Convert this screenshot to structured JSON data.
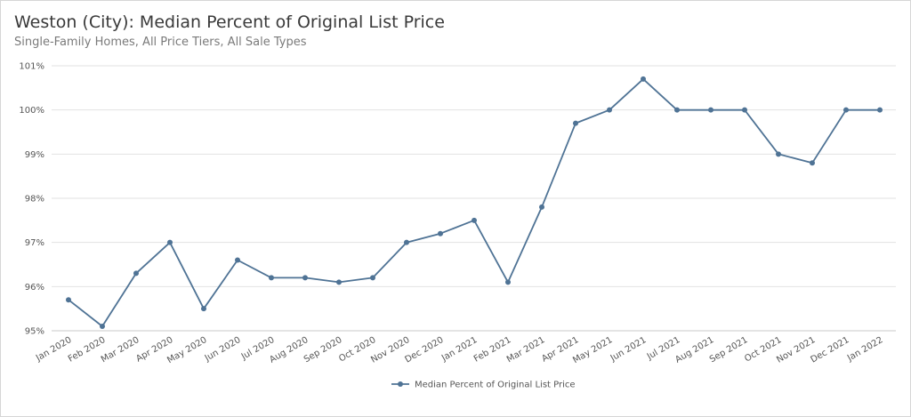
{
  "header": {
    "title": "Weston (City): Median Percent of Original List Price",
    "subtitle": "Single-Family Homes, All Price Tiers, All Sale Types"
  },
  "chart_data": {
    "type": "line",
    "title": "Weston (City): Median Percent of Original List Price",
    "subtitle": "Single-Family Homes, All Price Tiers, All Sale Types",
    "xlabel": "",
    "ylabel": "",
    "ylim": [
      95,
      101
    ],
    "y_ticks": [
      95,
      96,
      97,
      98,
      99,
      100,
      101
    ],
    "y_tick_labels": [
      "95%",
      "96%",
      "97%",
      "98%",
      "99%",
      "100%",
      "101%"
    ],
    "grid": "horizontal",
    "legend_position": "bottom-center",
    "categories": [
      "Jan 2020",
      "Feb 2020",
      "Mar 2020",
      "Apr 2020",
      "May 2020",
      "Jun 2020",
      "Jul 2020",
      "Aug 2020",
      "Sep 2020",
      "Oct 2020",
      "Nov 2020",
      "Dec 2020",
      "Jan 2021",
      "Feb 2021",
      "Mar 2021",
      "Apr 2021",
      "May 2021",
      "Jun 2021",
      "Jul 2021",
      "Aug 2021",
      "Sep 2021",
      "Oct 2021",
      "Nov 2021",
      "Dec 2021",
      "Jan 2022"
    ],
    "series": [
      {
        "name": "Median Percent of Original List Price",
        "color": "#4f7395",
        "values": [
          95.7,
          95.1,
          96.3,
          97.0,
          95.5,
          96.6,
          96.2,
          96.2,
          96.1,
          96.2,
          97.0,
          97.2,
          97.5,
          96.1,
          97.8,
          99.7,
          100.0,
          100.7,
          100.0,
          100.0,
          100.0,
          99.0,
          98.8,
          100.0,
          100.0
        ]
      }
    ]
  }
}
